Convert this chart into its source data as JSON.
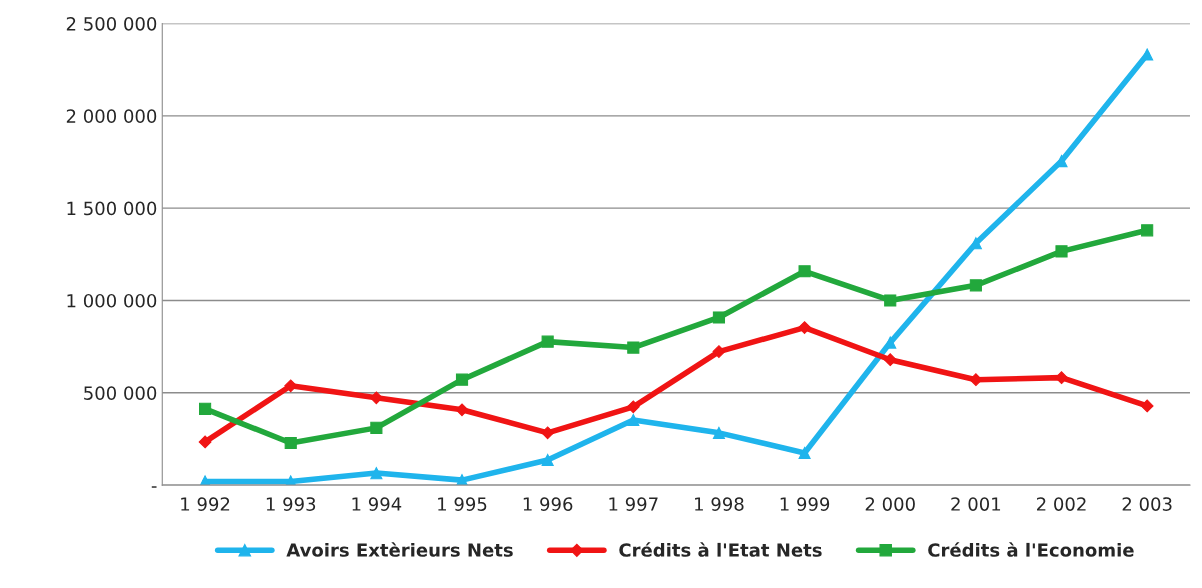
{
  "chart_data": {
    "type": "line",
    "categories": [
      "1 992",
      "1 993",
      "1 994",
      "1 995",
      "1 996",
      "1 997",
      "1 998",
      "1 999",
      "2 000",
      "2 001",
      "2 002",
      "2 003"
    ],
    "series": [
      {
        "name": "Avoirs Extèrieurs Nets",
        "color": "#1fb4ec",
        "marker": "triangle",
        "values": [
          20000,
          20000,
          65000,
          27000,
          136000,
          353000,
          283000,
          174000,
          772000,
          1310000,
          1755000,
          2332000
        ]
      },
      {
        "name": "Crédits à l'Etat Nets",
        "color": "#f01414",
        "marker": "diamond",
        "values": [
          234000,
          538000,
          473000,
          408000,
          283000,
          424000,
          723000,
          853000,
          679000,
          571000,
          582000,
          429000
        ]
      },
      {
        "name": "Crédits à l'Economie",
        "color": "#22a83c",
        "marker": "square",
        "values": [
          413000,
          228000,
          310000,
          571000,
          777000,
          745000,
          908000,
          1158000,
          1000000,
          1082000,
          1266000,
          1380000
        ]
      }
    ],
    "ylim": [
      0,
      2500000
    ],
    "yticks": [
      {
        "value": 0,
        "label": "-"
      },
      {
        "value": 500000,
        "label": "500 000"
      },
      {
        "value": 1000000,
        "label": "1 000 000"
      },
      {
        "value": 1500000,
        "label": "1 500 000"
      },
      {
        "value": 2000000,
        "label": "2 000 000"
      },
      {
        "value": 2500000,
        "label": "2 500 000"
      }
    ],
    "grid": "y",
    "legend": "bottom",
    "line_style": "solid"
  }
}
